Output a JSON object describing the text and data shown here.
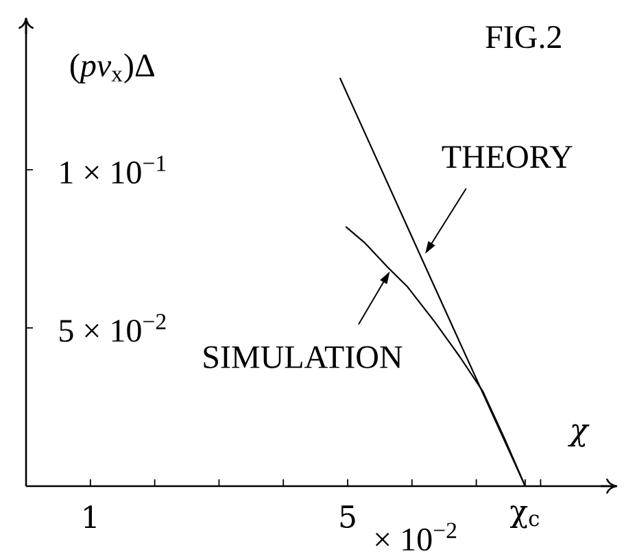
{
  "chart_data": {
    "type": "line",
    "title": "FIG.2",
    "xlabel": "χ",
    "ylabel": "(*pv*$_{x}$)Δ",
    "annotations": [
      {
        "text": "THEORY",
        "x": 6.16,
        "y": 0.072
      },
      {
        "text": "SIMULATION",
        "x": 5.66,
        "y": 0.068
      },
      "× 10$^{−2}$"
    ],
    "xlim": [
      0,
      9.19
    ],
    "ylim": [
      0,
      0.148
    ],
    "xticks": [
      1,
      {
        "value": 2,
        "label": null
      },
      {
        "value": 3,
        "label": null
      },
      {
        "value": 4,
        "label": null
      },
      5,
      {
        "value": 6,
        "label": null
      },
      {
        "value": 7,
        "label": null
      },
      {
        "value": 7.76,
        "label": "χ$_{c}$"
      },
      {
        "value": 8,
        "label": null
      }
    ],
    "yticks": [
      {
        "value": 0.05,
        "label": "5 × 10$^{−2}$"
      },
      {
        "value": 0.1,
        "label": "1 × 10$^{−1}$"
      }
    ],
    "series": [
      {
        "color": "#000000",
        "x": [
          4.88,
          6.35,
          7.76
        ],
        "values": [
          0.129,
          0.063,
          0
        ]
      },
      {
        "color": "#000000",
        "x": [
          4.97,
          5.26,
          5.63,
          5.93,
          6.35,
          6.74,
          7.1,
          7.44,
          7.76
        ],
        "values": [
          0.082,
          0.077,
          0.069,
          0.063,
          0.052,
          0.041,
          0.03,
          0.015,
          0
        ]
      }
    ]
  }
}
